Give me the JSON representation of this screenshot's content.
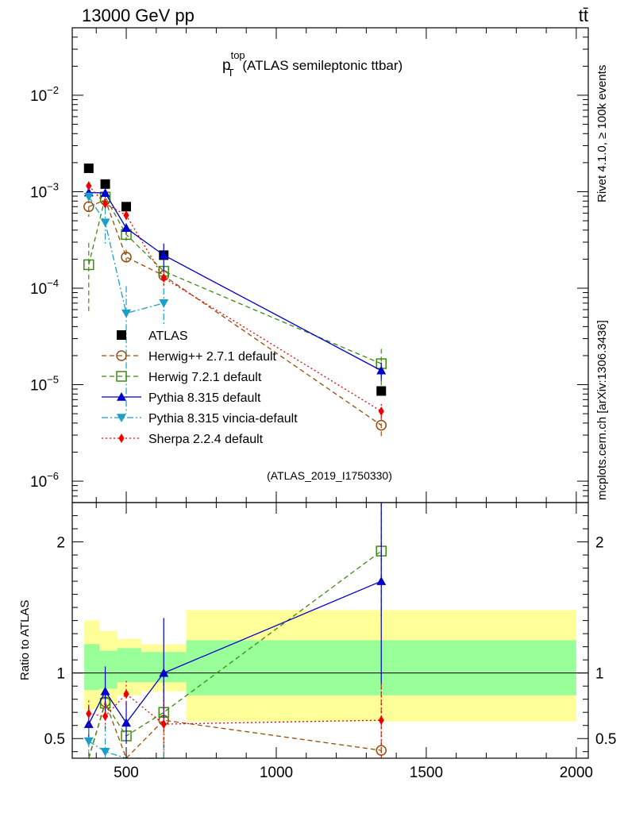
{
  "header": {
    "energy_label": "13000 GeV pp",
    "process_label": "tt̄"
  },
  "side_labels": {
    "rivet": "Rivet 4.1.0, ≥ 100k events",
    "mcplots": "mcplots.cern.ch [arXiv:1306.3436]"
  },
  "analysis_id": "(ATLAS_2019_I1750330)",
  "chart_data": {
    "type": "line",
    "title": {
      "main": "p",
      "sup": "top",
      "sub": "T",
      "rest": " (ATLAS semileptonic ttbar)"
    },
    "top_panel": {
      "yscale": "log",
      "ylim": [
        6e-07,
        0.05
      ],
      "xlim": [
        320,
        2040
      ],
      "y_ticks": [
        {
          "value": 1e-06,
          "base": "10",
          "exp": "−6"
        },
        {
          "value": 1e-05,
          "base": "10",
          "exp": "−5"
        },
        {
          "value": 0.0001,
          "base": "10",
          "exp": "−4"
        },
        {
          "value": 0.001,
          "base": "10",
          "exp": "−3"
        },
        {
          "value": 0.01,
          "base": "10",
          "exp": "−2"
        }
      ]
    },
    "ratio_panel": {
      "ylabel": "Ratio to ATLAS",
      "ylim": [
        0.35,
        2.3
      ],
      "y_ticks": [
        {
          "value": 0.5,
          "label": "0.5"
        },
        {
          "value": 1,
          "label": "1"
        },
        {
          "value": 2,
          "label": "2"
        }
      ],
      "bands": [
        {
          "x": [
            360,
            410
          ],
          "yellow": [
            0.72,
            1.4
          ],
          "green": [
            0.87,
            1.22
          ]
        },
        {
          "x": [
            410,
            470
          ],
          "yellow": [
            0.76,
            1.32
          ],
          "green": [
            0.88,
            1.17
          ]
        },
        {
          "x": [
            470,
            550
          ],
          "yellow": [
            0.83,
            1.26
          ],
          "green": [
            0.93,
            1.19
          ]
        },
        {
          "x": [
            550,
            700
          ],
          "yellow": [
            0.86,
            1.22
          ],
          "green": [
            0.93,
            1.16
          ]
        },
        {
          "x": [
            700,
            2000
          ],
          "yellow": [
            0.63,
            1.48
          ],
          "green": [
            0.83,
            1.25
          ]
        }
      ]
    },
    "x_ticks": [
      {
        "value": 500,
        "label": "500"
      },
      {
        "value": 1000,
        "label": "1000"
      },
      {
        "value": 1500,
        "label": "1500"
      },
      {
        "value": 2000,
        "label": "2000"
      }
    ],
    "series": [
      {
        "name": "ATLAS",
        "color": "#000000",
        "marker": "square",
        "line": "none",
        "x": [
          375,
          430,
          500,
          625,
          1350
        ],
        "y": [
          0.00175,
          0.0012,
          0.0007,
          0.00022,
          8.6e-06
        ]
      },
      {
        "name": "Herwig++ 2.7.1 default",
        "color": "#9a4d0a",
        "marker": "circle-open",
        "line": "dashed",
        "x": [
          375,
          430,
          500,
          625,
          1350
        ],
        "y": [
          0.0007,
          0.00082,
          0.00021,
          0.000135,
          3.8e-06
        ],
        "yerr": [
          0.00015,
          0.00015,
          4e-05,
          3e-05,
          1e-06
        ],
        "ratio": [
          0.34,
          0.78,
          0.18,
          0.64,
          0.41
        ],
        "ratio_err": [
          0.06,
          0.12,
          0.2,
          0.3,
          0.5
        ]
      },
      {
        "name": "Herwig 7.2.1 default",
        "color": "#3d8b12",
        "marker": "square-open",
        "line": "dashed",
        "x": [
          375,
          430,
          500,
          625,
          1350
        ],
        "y": [
          0.000175,
          0.00088,
          0.00036,
          0.00015,
          1.65e-05
        ],
        "yerr": [
          0.00012,
          0.0001,
          5e-05,
          2e-05,
          7e-06
        ],
        "ratio": [
          0.11,
          0.77,
          0.52,
          0.7,
          1.93
        ],
        "ratio_err": [
          0.05,
          0.08,
          0.06,
          0.12,
          0.5
        ]
      },
      {
        "name": "Pythia 8.315 default",
        "color": "#0000cc",
        "marker": "triangle",
        "line": "solid",
        "x": [
          375,
          430,
          500,
          625,
          1350
        ],
        "y": [
          0.00098,
          0.00097,
          0.00042,
          0.00022,
          1.4e-05
        ],
        "yerr": [
          0.00012,
          0.0001,
          5e-05,
          7e-05,
          3e-06
        ],
        "ratio": [
          0.61,
          0.86,
          0.62,
          1.0,
          1.7
        ],
        "ratio_err": [
          0.14,
          0.19,
          0.16,
          0.42,
          0.78
        ]
      },
      {
        "name": "Pythia 8.315 vincia-default",
        "color": "#1a9fc9",
        "marker": "triangle-down",
        "line": "dashdot",
        "x": [
          375,
          430,
          500,
          625
        ],
        "y": [
          0.00089,
          0.00048,
          5.5e-05,
          7e-05
        ],
        "yerr": [
          0.0001,
          0.0002,
          5e-05,
          3e-05
        ],
        "ratio": [
          0.48,
          0.4,
          0.08,
          0.32
        ],
        "ratio_err": [
          0.1,
          0.2,
          0.1,
          0.15
        ]
      },
      {
        "name": "Sherpa 2.2.4 default",
        "color": "#ee0000",
        "marker": "diamond",
        "line": "dotted",
        "x": [
          375,
          430,
          500,
          625,
          1350
        ],
        "y": [
          0.00115,
          0.00075,
          0.00057,
          0.000128,
          5.3e-06
        ],
        "yerr": [
          0.00012,
          0.0001,
          6e-05,
          2e-05,
          1e-06
        ],
        "ratio": [
          0.69,
          0.67,
          0.84,
          0.61,
          0.64
        ],
        "ratio_err": [
          0.1,
          0.1,
          0.1,
          0.2,
          0.28
        ]
      }
    ]
  }
}
